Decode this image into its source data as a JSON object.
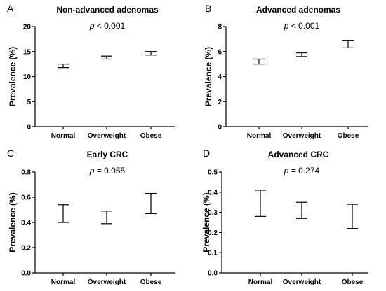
{
  "chart_data": [
    {
      "type": "error-bar",
      "panel": "A",
      "title": "Non-advanced adenomas",
      "p_prefix": "p",
      "p_rest": " < 0.001",
      "ylabel": "Prevalence (%)",
      "ylim": [
        0,
        20
      ],
      "yticks": [
        "0",
        "5",
        "10",
        "15",
        "20"
      ],
      "categories": [
        "Normal",
        "Overweight",
        "Obese"
      ],
      "lower": [
        11.8,
        13.5,
        14.3
      ],
      "upper": [
        12.5,
        14.1,
        15.0
      ]
    },
    {
      "type": "error-bar",
      "panel": "B",
      "title": "Advanced adenomas",
      "p_prefix": "p",
      "p_rest": " < 0.001",
      "ylabel": "Prevalence (%)",
      "ylim": [
        0,
        8
      ],
      "yticks": [
        "0",
        "2",
        "4",
        "6",
        "8"
      ],
      "categories": [
        "Normal",
        "Overweight",
        "Obese"
      ],
      "lower": [
        5.0,
        5.6,
        6.3
      ],
      "upper": [
        5.4,
        5.9,
        6.9
      ]
    },
    {
      "type": "error-bar",
      "panel": "C",
      "title": "Early CRC",
      "p_prefix": "p",
      "p_rest": " = 0.055",
      "ylabel": "Prevalence (%)",
      "ylim": [
        0,
        0.8
      ],
      "yticks": [
        "0.0",
        "0.2",
        "0.4",
        "0.6",
        "0.8"
      ],
      "categories": [
        "Normal",
        "Overweight",
        "Obese"
      ],
      "lower": [
        0.4,
        0.39,
        0.47
      ],
      "upper": [
        0.54,
        0.49,
        0.63
      ]
    },
    {
      "type": "error-bar",
      "panel": "D",
      "title": "Advanced CRC",
      "p_prefix": "p",
      "p_rest": " = 0.274",
      "ylabel": "Prevalence (%)",
      "ylim": [
        0,
        0.5
      ],
      "yticks": [
        "0.0",
        "0.1",
        "0.2",
        "0.3",
        "0.4",
        "0.5"
      ],
      "categories": [
        "Normal",
        "Overweight",
        "Obese"
      ],
      "lower": [
        0.28,
        0.27,
        0.22
      ],
      "upper": [
        0.41,
        0.35,
        0.34
      ]
    }
  ]
}
